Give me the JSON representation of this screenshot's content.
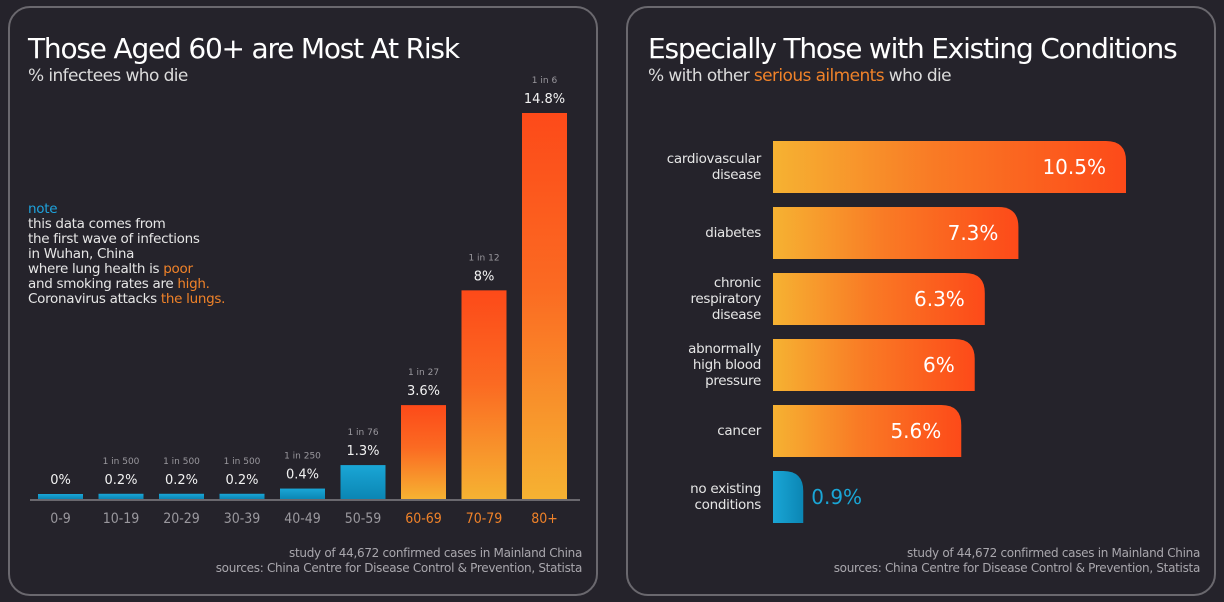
{
  "left_panel": {
    "title": "Those Aged 60+ are Most At Risk",
    "subtitle": "% infectees who die",
    "note": {
      "heading": "note",
      "lines": [
        {
          "text": "this data comes from",
          "highlight": ""
        },
        {
          "text": "the first wave of infections",
          "highlight": ""
        },
        {
          "text": "in Wuhan, China",
          "highlight": ""
        },
        {
          "text": "where lung health is ",
          "highlight": "poor"
        },
        {
          "text": "and smoking rates are ",
          "highlight": "high."
        },
        {
          "text": "Coronavirus attacks ",
          "highlight": "the lungs."
        }
      ]
    },
    "footer": {
      "line1": "study of 44,672 confirmed cases in Mainland China",
      "line2": "sources: China Centre for Disease Control & Prevention, Statista"
    }
  },
  "right_panel": {
    "title": "Especially Those with Existing Conditions",
    "subtitle_pre": "% with other ",
    "subtitle_highlight": "serious ailments",
    "subtitle_post": " who die",
    "footer": {
      "line1": "study of 44,672 confirmed cases in Mainland China",
      "line2": "sources: China Centre for Disease Control & Prevention, Statista"
    }
  },
  "colors": {
    "background": "#25232b",
    "panel_border": "#6a686e",
    "blue": "#1aa6d6",
    "blue_dark": "#0b86b4",
    "orange_top": "#fd4a19",
    "orange_bottom": "#f6b232",
    "accent_text": "#f08229",
    "label_grey": "#9a989e"
  },
  "chart_data": [
    {
      "type": "bar",
      "orientation": "vertical",
      "title": "Those Aged 60+ are Most At Risk",
      "subtitle": "% infectees who die",
      "xlabel": "",
      "ylabel": "",
      "ylim": [
        0,
        14.8
      ],
      "grid": false,
      "categories": [
        "0-9",
        "10-19",
        "20-29",
        "30-39",
        "40-49",
        "50-59",
        "60-69",
        "70-79",
        "80+"
      ],
      "values": [
        0,
        0.2,
        0.2,
        0.2,
        0.4,
        1.3,
        3.6,
        8,
        14.8
      ],
      "value_labels": [
        "0%",
        "0.2%",
        "0.2%",
        "0.2%",
        "0.4%",
        "1.3%",
        "3.6%",
        "8%",
        "14.8%"
      ],
      "odds_labels": [
        "",
        "1 in 500",
        "1 in 500",
        "1 in 500",
        "1 in 250",
        "1 in 76",
        "1 in 27",
        "1 in 12",
        "1 in 6"
      ],
      "highlight_from_index": 6
    },
    {
      "type": "bar",
      "orientation": "horizontal",
      "title": "Especially Those with Existing Conditions",
      "subtitle": "% with other serious ailments who die",
      "xlim": [
        0,
        10.5
      ],
      "grid": false,
      "categories": [
        [
          "cardiovascular",
          "disease"
        ],
        [
          "diabetes"
        ],
        [
          "chronic",
          "respiratory",
          "disease"
        ],
        [
          "abnormally",
          "high blood",
          "pressure"
        ],
        [
          "cancer"
        ],
        [
          "no existing",
          "conditions"
        ]
      ],
      "values": [
        10.5,
        7.3,
        6.3,
        6,
        5.6,
        0.9
      ],
      "value_labels": [
        "10.5%",
        "7.3%",
        "6.3%",
        "6%",
        "5.6%",
        "0.9%"
      ],
      "blue_index": 5
    }
  ]
}
